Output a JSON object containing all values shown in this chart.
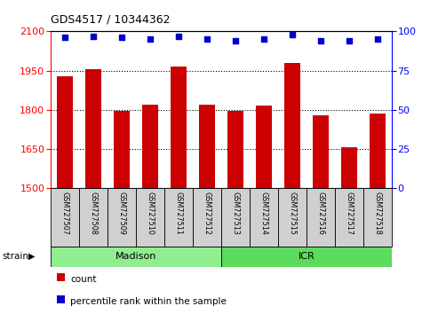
{
  "title": "GDS4517 / 10344362",
  "samples": [
    "GSM727507",
    "GSM727508",
    "GSM727509",
    "GSM727510",
    "GSM727511",
    "GSM727512",
    "GSM727513",
    "GSM727514",
    "GSM727515",
    "GSM727516",
    "GSM727517",
    "GSM727518"
  ],
  "counts": [
    1930,
    1955,
    1797,
    1820,
    1967,
    1820,
    1795,
    1815,
    1980,
    1780,
    1658,
    1785
  ],
  "percentiles": [
    96,
    97,
    96,
    95,
    97,
    95,
    94,
    95,
    98,
    94,
    94,
    95
  ],
  "bar_color": "#cc0000",
  "dot_color": "#0000cc",
  "ylim_left": [
    1500,
    2100
  ],
  "ylim_right": [
    0,
    100
  ],
  "yticks_left": [
    1500,
    1650,
    1800,
    1950,
    2100
  ],
  "yticks_right": [
    0,
    25,
    50,
    75,
    100
  ],
  "groups": [
    {
      "label": "Madison",
      "start": 0,
      "end": 6,
      "color": "#90EE90"
    },
    {
      "label": "ICR",
      "start": 6,
      "end": 12,
      "color": "#5CDB5C"
    }
  ],
  "strain_label": "strain",
  "legend_count": "count",
  "legend_percentile": "percentile rank within the sample",
  "background_color": "#ffffff",
  "tick_area_color": "#d0d0d0",
  "dotted_line_color": "#000000",
  "grid_lines": [
    1650,
    1800,
    1950
  ]
}
